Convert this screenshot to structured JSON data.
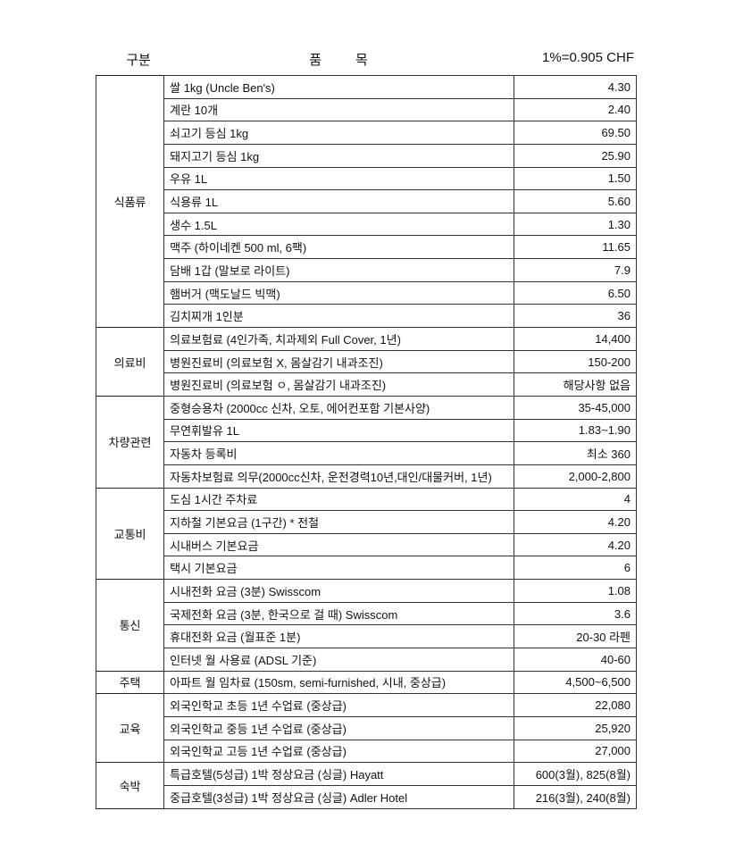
{
  "header": {
    "category": "구분",
    "item_1": "품",
    "item_2": "목",
    "unit": "1%=0.905 CHF"
  },
  "groups": [
    {
      "category": "식품류",
      "rows": [
        {
          "item": "쌀 1kg (Uncle Ben's)",
          "value": "4.30"
        },
        {
          "item": "계란 10개",
          "value": "2.40"
        },
        {
          "item": "쇠고기 등심 1kg",
          "value": "69.50"
        },
        {
          "item": "돼지고기 등심 1kg",
          "value": "25.90"
        },
        {
          "item": "우유 1L",
          "value": "1.50"
        },
        {
          "item": "식용류 1L",
          "value": "5.60"
        },
        {
          "item": "생수 1.5L",
          "value": "1.30"
        },
        {
          "item": "맥주 (하이네켄 500 ml, 6팩)",
          "value": "11.65"
        },
        {
          "item": "담배 1갑 (말보로 라이트)",
          "value": "7.9"
        },
        {
          "item": "햄버거 (맥도날드 빅맥)",
          "value": "6.50"
        },
        {
          "item": "김치찌개 1인분",
          "value": "36"
        }
      ]
    },
    {
      "category": "의료비",
      "rows": [
        {
          "item": "의료보험료 (4인가족, 치과제외 Full Cover, 1년)",
          "value": "14,400"
        },
        {
          "item": "병원진료비 (의료보험 X, 몸살감기 내과조진)",
          "value": "150-200"
        },
        {
          "item": "병원진료비 (의료보험 ㅇ, 몸살감기 내과조진)",
          "value": "해당사항 없음"
        }
      ]
    },
    {
      "category": "차량관련",
      "rows": [
        {
          "item": "중형승용차 (2000cc 신차, 오토, 에어컨포함 기본사양)",
          "value": "35-45,000"
        },
        {
          "item": "무연휘발유 1L",
          "value": "1.83~1.90"
        },
        {
          "item": "자동차 등록비",
          "value": "최소 360"
        },
        {
          "item": "자동차보험료 의무(2000cc신차, 운전경력10년,대인/대물커버, 1년)",
          "value": "2,000-2,800"
        }
      ]
    },
    {
      "category": "교통비",
      "rows": [
        {
          "item": "도심 1시간 주차료",
          "value": "4"
        },
        {
          "item": "지하철 기본요금 (1구간)  * 전철",
          "value": "4.20"
        },
        {
          "item": "시내버스 기본요금",
          "value": "4.20"
        },
        {
          "item": "택시 기본요금",
          "value": "6"
        }
      ]
    },
    {
      "category": "통신",
      "rows": [
        {
          "item": "시내전화 요금 (3분) Swisscom",
          "value": "1.08"
        },
        {
          "item": "국제전화 요금 (3분, 한국으로 걸 때) Swisscom",
          "value": "3.6"
        },
        {
          "item": "휴대전화 요금 (월표준 1분)",
          "value": "20-30 라펜"
        },
        {
          "item": "인터넷 월 사용료 (ADSL 기준)",
          "value": "40-60"
        }
      ]
    },
    {
      "category": "주택",
      "rows": [
        {
          "item": "아파트 월 임차료 (150sm, semi-furnished, 시내, 중상급)",
          "value": "4,500~6,500"
        }
      ]
    },
    {
      "category": "교육",
      "rows": [
        {
          "item": "외국인학교 초등 1년 수업료 (중상급)",
          "value": "22,080"
        },
        {
          "item": "외국인학교 중등 1년 수업료 (중상급)",
          "value": "25,920"
        },
        {
          "item": "외국인학교 고등 1년 수업료 (중상급)",
          "value": "27,000"
        }
      ]
    },
    {
      "category": "숙박",
      "rows": [
        {
          "item": "특급호텔(5성급) 1박 정상요금 (싱글) Hayatt",
          "value": "600(3월), 825(8월)"
        },
        {
          "item": "중급호텔(3성급) 1박 정상요금 (싱글) Adler Hotel",
          "value": "216(3월), 240(8월)"
        }
      ]
    }
  ]
}
